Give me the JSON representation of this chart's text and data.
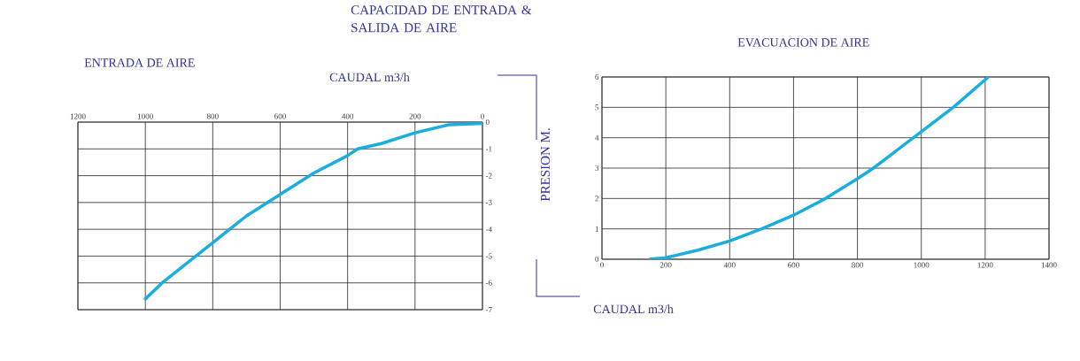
{
  "chart_data": [
    {
      "type": "line",
      "title": "ENTRADA DE AIRE",
      "xlabel": "CAUDAL m3/h",
      "annotations": [
        "CAPACIDAD DE ENTRADA & SALIDA DE AIRE"
      ],
      "color": "#1aaee0",
      "x": [
        0,
        100,
        200,
        300,
        370,
        400,
        500,
        600,
        700,
        800,
        850,
        950,
        1000
      ],
      "values": [
        -0.05,
        -0.1,
        -0.4,
        -0.8,
        -1.0,
        -1.25,
        -1.9,
        -2.7,
        -3.5,
        -4.5,
        -5.0,
        -6.0,
        -6.6
      ],
      "xlim": [
        1200,
        0
      ],
      "xticks": [
        1200,
        1000,
        800,
        600,
        400,
        200,
        0
      ],
      "ylim": [
        -7,
        0
      ],
      "yticks": [
        0,
        -1,
        -2,
        -3,
        -4,
        -5,
        -6,
        -7
      ],
      "grid": true
    },
    {
      "type": "line",
      "title": "EVACUACION DE AIRE",
      "xlabel": "CAUDAL m3/h",
      "ylabel": "PRESION  M.",
      "color": "#1aaee0",
      "x": [
        150,
        200,
        300,
        400,
        500,
        600,
        700,
        800,
        850,
        900,
        1000,
        1100,
        1210
      ],
      "values": [
        0,
        0.05,
        0.3,
        0.6,
        1.0,
        1.45,
        2.0,
        2.65,
        3.0,
        3.4,
        4.2,
        5.0,
        6.0
      ],
      "xlim": [
        0,
        1400
      ],
      "xticks": [
        0,
        200,
        400,
        600,
        800,
        1000,
        1200,
        1400
      ],
      "ylim": [
        0,
        6
      ],
      "yticks": [
        0,
        1,
        2,
        3,
        4,
        5,
        6
      ],
      "grid": true
    }
  ]
}
